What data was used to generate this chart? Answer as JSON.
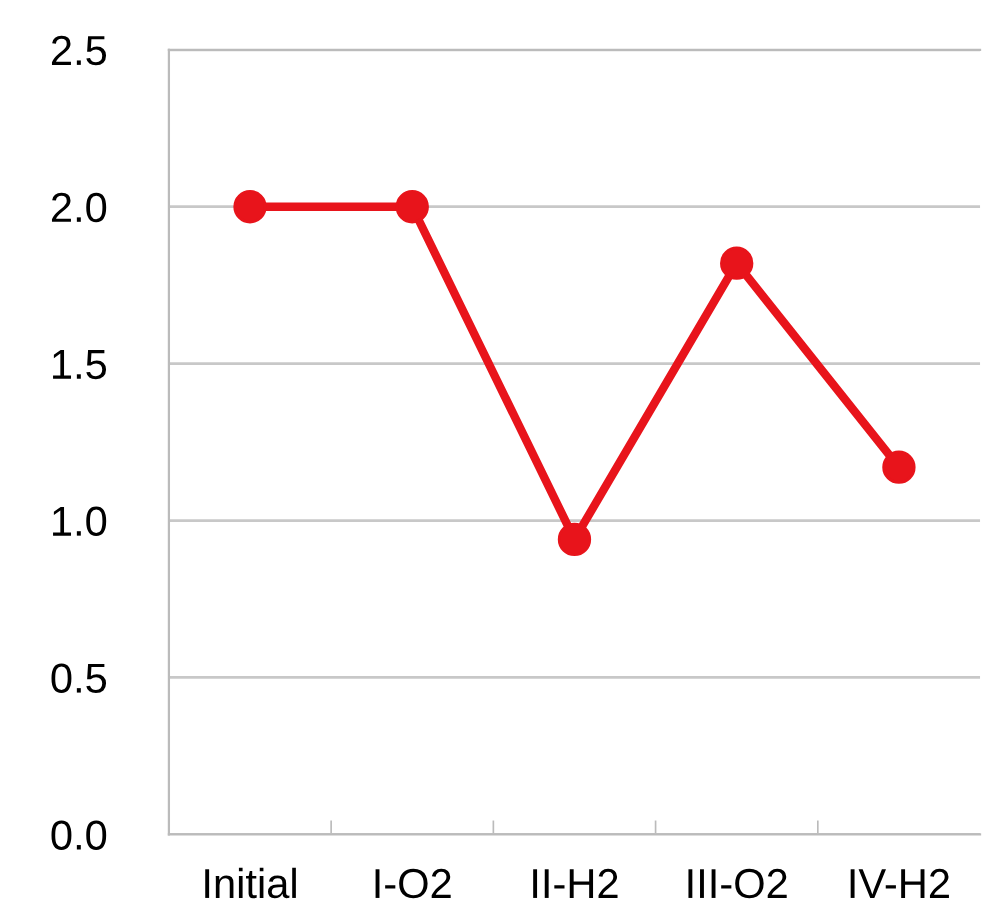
{
  "chart_data": {
    "type": "line",
    "categories": [
      "Initial",
      "I-O2",
      "II-H2",
      "III-O2",
      "IV-H2"
    ],
    "series": [
      {
        "color": "#e8141b",
        "values": [
          2.0,
          2.0,
          0.94,
          1.82,
          1.17
        ]
      }
    ],
    "ylim": [
      0,
      2.5
    ],
    "yticks": [
      {
        "value": 0,
        "label": "0.0"
      },
      {
        "value": 0.5,
        "label": "0.5"
      },
      {
        "value": 1,
        "label": "1.0"
      },
      {
        "value": 1.5,
        "label": "1.5"
      },
      {
        "value": 2,
        "label": "2.0"
      },
      {
        "value": 2.5,
        "label": "2.5"
      }
    ],
    "grid": "y",
    "marker": "circle",
    "line_style": "solid"
  }
}
